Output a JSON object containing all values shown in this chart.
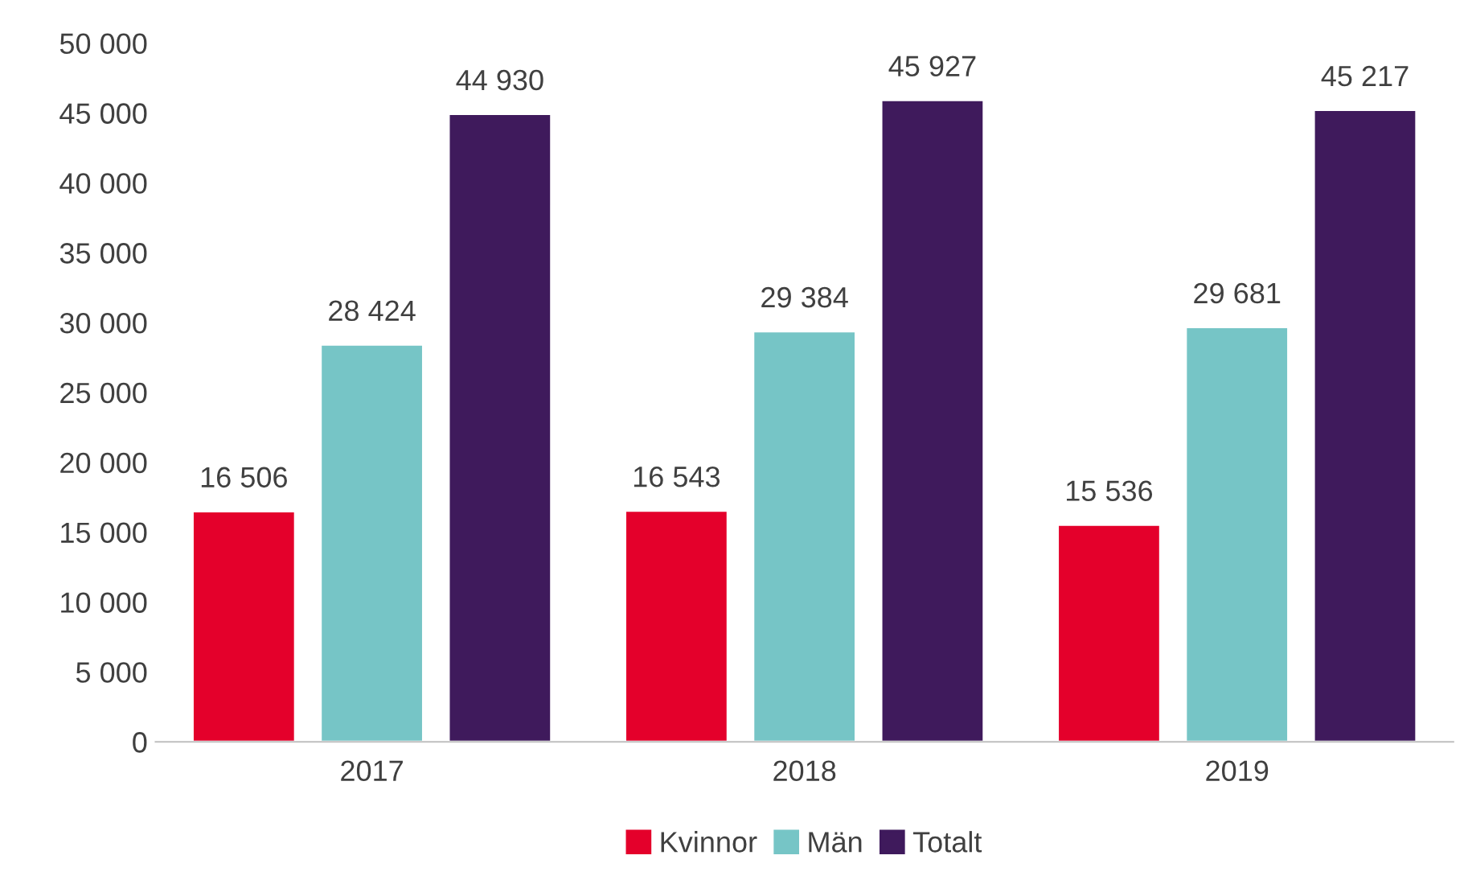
{
  "chart_data": {
    "type": "bar",
    "categories": [
      "2017",
      "2018",
      "2019"
    ],
    "series": [
      {
        "name": "Kvinnor",
        "color": "#e4002b",
        "values": [
          16506,
          16543,
          15536
        ],
        "value_labels": [
          "16 506",
          "16 543",
          "15 536"
        ]
      },
      {
        "name": "Män",
        "color": "#76c5c6",
        "values": [
          28424,
          29384,
          29681
        ],
        "value_labels": [
          "28 424",
          "29 384",
          "29 681"
        ]
      },
      {
        "name": "Totalt",
        "color": "#3f1a5c",
        "values": [
          44930,
          45927,
          45217
        ],
        "value_labels": [
          "44 930",
          "45 927",
          "45 217"
        ]
      }
    ],
    "ylim": [
      0,
      50000
    ],
    "yticks": [
      {
        "value": 0,
        "label": "0"
      },
      {
        "value": 5000,
        "label": "5 000"
      },
      {
        "value": 10000,
        "label": "10 000"
      },
      {
        "value": 15000,
        "label": "15 000"
      },
      {
        "value": 20000,
        "label": "20 000"
      },
      {
        "value": 25000,
        "label": "25 000"
      },
      {
        "value": 30000,
        "label": "30 000"
      },
      {
        "value": 35000,
        "label": "35 000"
      },
      {
        "value": 40000,
        "label": "40 000"
      },
      {
        "value": 45000,
        "label": "45 000"
      },
      {
        "value": 50000,
        "label": "50 000"
      }
    ],
    "grid": false,
    "legend": "bottom"
  }
}
